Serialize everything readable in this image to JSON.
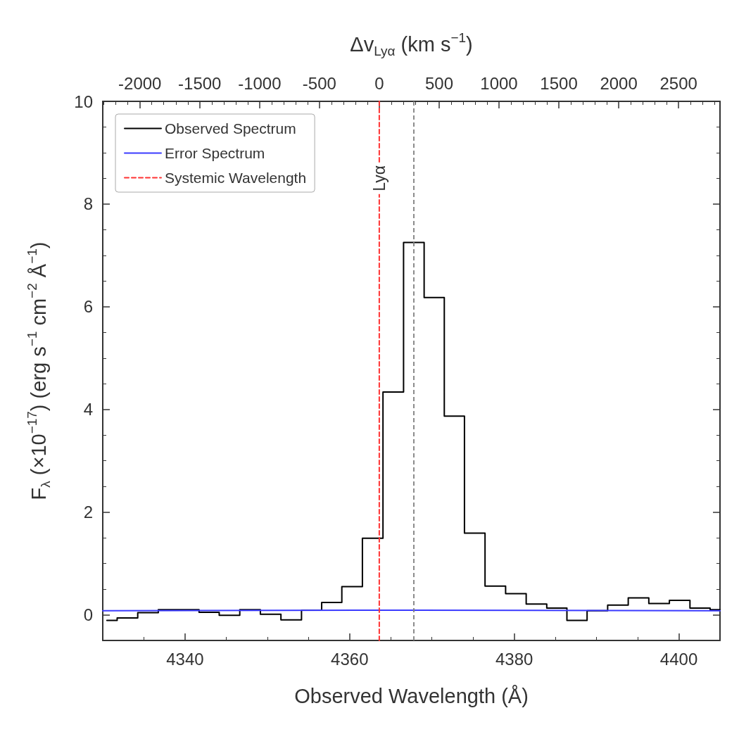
{
  "chart_data": {
    "type": "step",
    "xlabel": "Observed Wavelength (Å)",
    "ylabel": "F$_{λ}$ (×10$^{−17}$) (erg s$^{−1}$ cm$^{−2}$ Å$^{−1}$)",
    "x2label": "Δv$_{Lyα}$ (km s$^{−1}$)",
    "xlim": [
      4330,
      4405
    ],
    "xticks": [
      4340,
      4360,
      4380,
      4400
    ],
    "ylim": [
      -0.5,
      10
    ],
    "yticks": [
      0,
      2,
      4,
      6,
      8,
      10
    ],
    "x2lim": [
      -2310,
      2846
    ],
    "x2ticks": [
      -2000,
      -1500,
      -1000,
      -500,
      0,
      500,
      1000,
      1500,
      2000,
      2500
    ],
    "series": [
      {
        "name": "Observed Spectrum",
        "color": "#000000",
        "x": [
          4330.5,
          4333.0,
          4335.5,
          4338.0,
          4340.5,
          4342.9,
          4345.4,
          4347.9,
          4350.4,
          4352.9,
          4355.4,
          4357.8,
          4360.3,
          4362.8,
          4365.3,
          4367.8,
          4370.3,
          4372.7,
          4375.2,
          4377.7,
          4380.2,
          4382.7,
          4385.2,
          4387.6,
          4390.1,
          4392.6,
          4395.1,
          4397.6,
          4400.1,
          4402.6,
          4405.0
        ],
        "values": [
          -0.11,
          -0.06,
          0.04,
          0.1,
          0.1,
          0.05,
          -0.01,
          0.1,
          0.01,
          -0.1,
          0.09,
          0.24,
          0.55,
          1.49,
          4.34,
          7.25,
          6.18,
          3.87,
          1.59,
          0.56,
          0.41,
          0.21,
          0.13,
          -0.11,
          0.08,
          0.19,
          0.33,
          0.22,
          0.28,
          0.13,
          0.1
        ]
      },
      {
        "name": "Error Spectrum",
        "type": "line",
        "color": "#3b3bff",
        "x": [
          4330,
          4368,
          4405
        ],
        "values": [
          0.08,
          0.09,
          0.08
        ]
      },
      {
        "name": "Systemic Wavelength",
        "type": "line",
        "color": "#ff3333",
        "line_style": "dashed",
        "x": [
          4363.6,
          4363.6
        ],
        "values": [
          -0.5,
          10
        ]
      }
    ],
    "ref_lines": [
      {
        "axis": "x",
        "value": 4367.8,
        "color": "#808080",
        "line_style": "dashed"
      }
    ],
    "annotations": [
      {
        "text": "Lyα",
        "x": 4363.6,
        "y": 8.5
      }
    ],
    "marker": "none",
    "grid": false,
    "legend": "top left"
  }
}
